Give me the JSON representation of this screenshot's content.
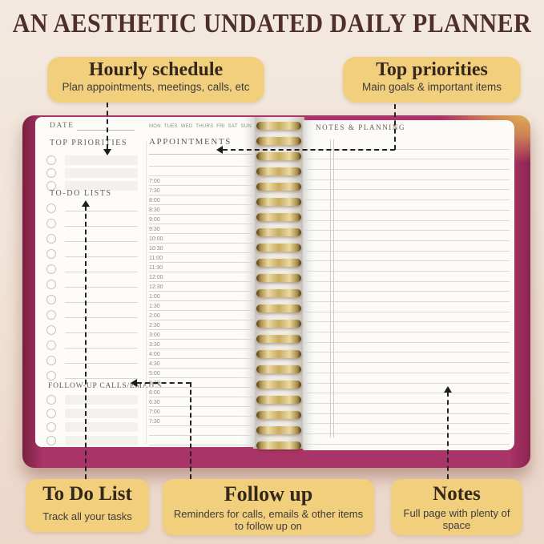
{
  "title": "AN AESTHETIC UNDATED DAILY PLANNER",
  "callouts": {
    "hourly": {
      "title": "Hourly schedule",
      "subtitle": "Plan appointments, meetings, calls, etc"
    },
    "priorities": {
      "title": "Top priorities",
      "subtitle": "Main goals & important items"
    },
    "todo": {
      "title": "To Do List",
      "subtitle": "Track all your tasks"
    },
    "followup": {
      "title": "Follow up",
      "subtitle": "Reminders for calls, emails & other items to follow up on"
    },
    "notes": {
      "title": "Notes",
      "subtitle": "Full page with plenty of space"
    }
  },
  "planner": {
    "spiral_coils": 22,
    "left_page": {
      "date_label": "DATE",
      "days": [
        "MON",
        "TUES",
        "WED",
        "THURS",
        "FRI",
        "SAT",
        "SUN"
      ],
      "top_priorities_label": "TOP PRIORITIES",
      "todo_label": "TO-DO LISTS",
      "followup_label": "FOLLOW-UP CALLS/EMAILS",
      "appointments_label": "APPOINTMENTS",
      "priority_rows": 3,
      "todo_rows": 12,
      "followup_rows": 4,
      "time_slots": [
        "",
        "",
        "7:00",
        "7:30",
        "8:00",
        "8:30",
        "9:00",
        "9:30",
        "10:00",
        "10:30",
        "11:00",
        "11:30",
        "12:00",
        "12:30",
        "1:00",
        "1:30",
        "2:00",
        "2:30",
        "3:00",
        "3:30",
        "4:00",
        "4:30",
        "5:00",
        "5:30",
        "6:00",
        "6:30",
        "7:00",
        "7:30",
        "",
        ""
      ]
    },
    "right_page": {
      "notes_label": "NOTES & PLANNING",
      "ruled_lines": 30
    }
  },
  "colors": {
    "callout_bg": "#f2cf7d",
    "title_brown": "#4e3029",
    "cover_magenta": "#a93467",
    "cover_gold": "#dcad53",
    "page_white": "#fdfcf9",
    "rule_gray": "#dad8d2",
    "arrow_black": "#1c1c1c"
  }
}
